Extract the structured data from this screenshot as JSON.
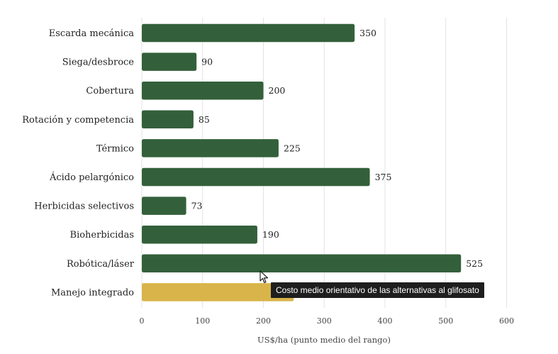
{
  "chart_data": {
    "type": "bar",
    "orientation": "horizontal",
    "categories": [
      "Escarda mecánica",
      "Siega/desbroce",
      "Cobertura",
      "Rotación y competencia",
      "Térmico",
      "Ácido pelargónico",
      "Herbicidas selectivos",
      "Bioherbicidas",
      "Robótica/láser",
      "Manejo integrado"
    ],
    "values": [
      350,
      90,
      200,
      85,
      225,
      375,
      73,
      190,
      525,
      250
    ],
    "value_labels": [
      "350",
      "90",
      "200",
      "85",
      "225",
      "375",
      "73",
      "190",
      "525",
      ""
    ],
    "xlabel": "US$/ha (punto medio del rango)",
    "ylabel": "",
    "title": "",
    "xlim": [
      0,
      600
    ],
    "xticks": [
      0,
      100,
      200,
      300,
      400,
      500,
      600
    ],
    "grid": "vertical",
    "legend": "none",
    "colors": {
      "default": "#33603a",
      "highlight": "#d8b44a"
    },
    "highlight_index": 9
  },
  "tooltip": {
    "text": "Costo medio orientativo de las alternativas al glifosato"
  }
}
